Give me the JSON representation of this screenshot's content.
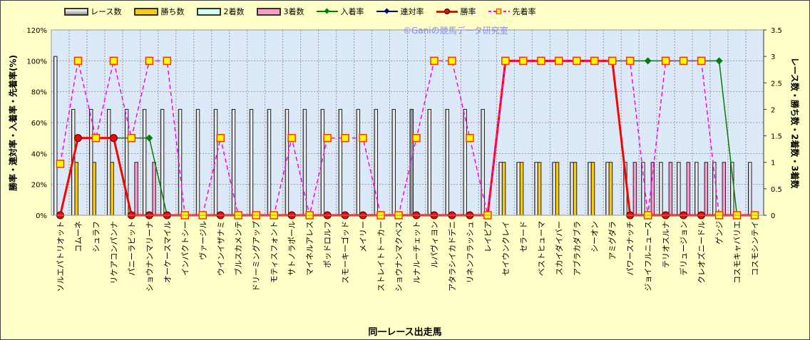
{
  "chart_data": {
    "type": "bar+line",
    "watermark": "©Ganiの競馬データ研究室",
    "xlabel": "同一レース出走馬",
    "ylabel_left": "勝率・連対率・入着率・先着率(%)",
    "ylabel_right": "レース数・勝ち数・2着数・3着数",
    "ylim_left": [
      0,
      120
    ],
    "ylim_right": [
      0,
      3.5
    ],
    "left_ticks": [
      "0%",
      "20%",
      "40%",
      "60%",
      "80%",
      "100%",
      "120%"
    ],
    "right_ticks": [
      "0",
      "0.5",
      "1",
      "1.5",
      "2",
      "2.5",
      "3",
      "3.5"
    ],
    "legend": [
      "レース数",
      "勝ち数",
      "2着数",
      "3着数",
      "入着率",
      "連対率",
      "勝率",
      "先着率"
    ],
    "legend_placement": "top",
    "colors": {
      "races": "#E8E8E8",
      "wins": "#FFCC00",
      "second": "#CCFFFF",
      "third": "#FF99CC",
      "place_rate": "#008000",
      "rentai_rate": "#000080",
      "win_rate": "#FF0000",
      "senchaku_rate": "#FF00FF"
    },
    "categories": [
      "ソルエパトリオット",
      "コムーネ",
      "シュラフ",
      "リケアコンパンナ",
      "パニーラビット",
      "ショウナンマリーナ",
      "オーケースマイル",
      "インパクトシー",
      "ヴァージル",
      "ウインイザナミ",
      "ブルスカメンテ",
      "ドリーミングアップ",
      "モティスフォント",
      "サトノラポール",
      "マイネルアレス",
      "ポッドロルフ",
      "スモーキーゴッド",
      "メイリー",
      "ストレイトトーカー",
      "ショウナンマクベス",
      "ルナルーチェット",
      "ルパヴィヨン",
      "アタラシイカドデニ",
      "リネンフラッシュ",
      "レイピア",
      "セイウンクレイ",
      "セラード",
      "ベストヒューマ",
      "スカイダイバー",
      "アブラカダブラ",
      "シーオン",
      "アミグダラ",
      "パワースナッチ",
      "ジョイフルニュース",
      "テリオスルナ",
      "デリュージョン",
      "クレオズニードル",
      "ゲンジ",
      "コスモキャバリエ",
      "コスモシンテイ"
    ],
    "series": [
      {
        "name": "レース数",
        "axis": "right",
        "values": [
          3,
          2,
          2,
          2,
          2,
          2,
          2,
          2,
          2,
          2,
          2,
          2,
          2,
          2,
          2,
          2,
          2,
          2,
          2,
          2,
          2,
          2,
          2,
          2,
          2,
          1,
          1,
          1,
          1,
          1,
          1,
          1,
          1,
          1,
          1,
          1,
          1,
          1,
          1,
          1
        ]
      },
      {
        "name": "勝ち数",
        "axis": "right",
        "values": [
          0,
          1,
          1,
          1,
          0,
          0,
          0,
          0,
          0,
          0,
          0,
          0,
          0,
          0,
          0,
          0,
          0,
          0,
          0,
          0,
          0,
          0,
          0,
          0,
          0,
          1,
          1,
          1,
          1,
          1,
          1,
          1,
          0,
          0,
          0,
          0,
          0,
          0,
          0,
          0
        ]
      },
      {
        "name": "2着数",
        "axis": "right",
        "values": [
          0,
          0,
          0,
          0,
          0,
          0,
          0,
          0,
          0,
          0,
          0,
          0,
          0,
          0,
          0,
          0,
          0,
          0,
          0,
          0,
          0,
          0,
          0,
          0,
          0,
          0,
          0,
          0,
          0,
          0,
          0,
          0,
          0,
          0,
          0,
          0,
          0,
          0,
          0,
          0
        ]
      },
      {
        "name": "3着数",
        "axis": "right",
        "values": [
          0,
          0,
          0,
          0,
          1,
          1,
          0,
          0,
          0,
          0,
          0,
          0,
          0,
          0,
          0,
          0,
          0,
          0,
          0,
          0,
          0,
          0,
          0,
          0,
          0,
          0,
          0,
          0,
          0,
          0,
          0,
          0,
          1,
          1,
          1,
          1,
          1,
          1,
          0,
          0
        ]
      },
      {
        "name": "入着率",
        "axis": "left",
        "values": [
          0,
          50,
          50,
          50,
          50,
          50,
          0,
          0,
          0,
          0,
          0,
          0,
          0,
          0,
          0,
          0,
          0,
          0,
          0,
          0,
          0,
          0,
          0,
          0,
          0,
          100,
          100,
          100,
          100,
          100,
          100,
          100,
          100,
          100,
          100,
          100,
          100,
          100,
          0,
          0
        ]
      },
      {
        "name": "連対率",
        "axis": "left",
        "values": [
          0,
          50,
          50,
          50,
          0,
          0,
          0,
          0,
          0,
          0,
          0,
          0,
          0,
          0,
          0,
          0,
          0,
          0,
          0,
          0,
          0,
          0,
          0,
          0,
          0,
          100,
          100,
          100,
          100,
          100,
          100,
          100,
          0,
          0,
          0,
          0,
          0,
          0,
          0,
          0
        ]
      },
      {
        "name": "勝率",
        "axis": "left",
        "values": [
          0,
          50,
          50,
          50,
          0,
          0,
          0,
          0,
          0,
          0,
          0,
          0,
          0,
          0,
          0,
          0,
          0,
          0,
          0,
          0,
          0,
          0,
          0,
          0,
          0,
          100,
          100,
          100,
          100,
          100,
          100,
          100,
          0,
          0,
          0,
          0,
          0,
          0,
          0,
          0
        ]
      },
      {
        "name": "先着率",
        "axis": "left",
        "values": [
          33.3,
          100,
          50,
          100,
          50,
          100,
          100,
          0,
          0,
          50,
          0,
          0,
          0,
          50,
          0,
          50,
          50,
          50,
          0,
          0,
          50,
          100,
          100,
          50,
          0,
          100,
          100,
          100,
          100,
          100,
          100,
          100,
          100,
          0,
          100,
          100,
          100,
          0,
          0,
          0
        ]
      }
    ]
  }
}
